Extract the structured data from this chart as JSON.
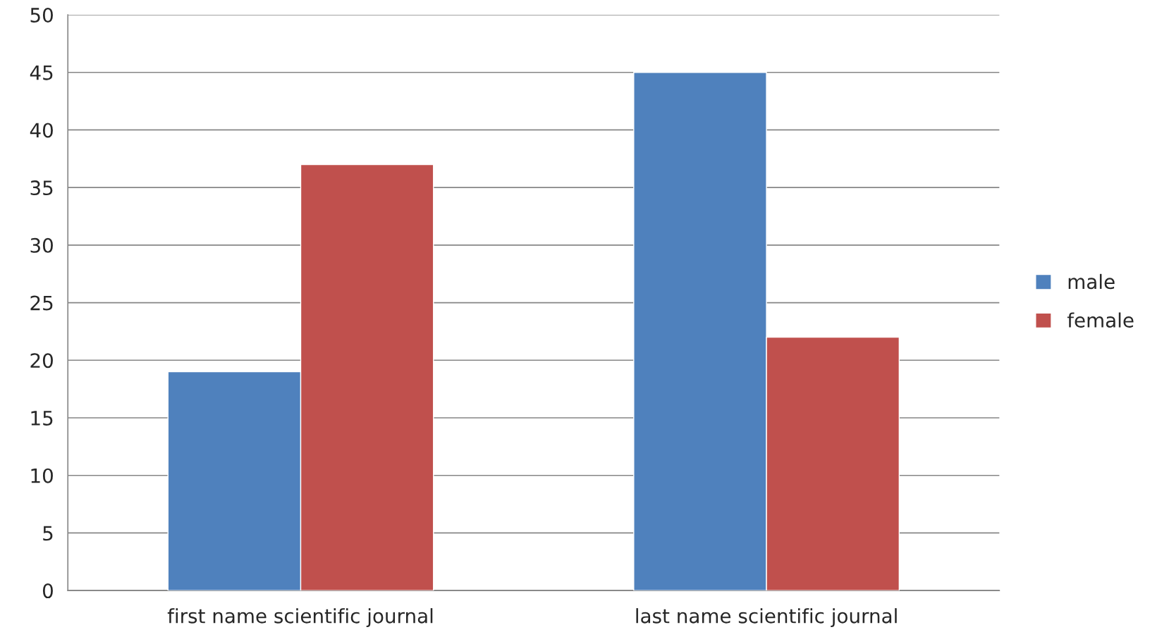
{
  "chart_data": {
    "type": "bar",
    "categories": [
      "first name scientific journal",
      "last name scientific journal"
    ],
    "series": [
      {
        "name": "male",
        "color": "#4f81bd",
        "values": [
          19,
          45
        ]
      },
      {
        "name": "female",
        "color": "#c0504d",
        "values": [
          37,
          22
        ]
      }
    ],
    "ylim": [
      0,
      50
    ],
    "yticks": [
      0,
      5,
      10,
      15,
      20,
      25,
      30,
      35,
      40,
      45,
      50
    ],
    "grid": "y",
    "legend": "right"
  }
}
